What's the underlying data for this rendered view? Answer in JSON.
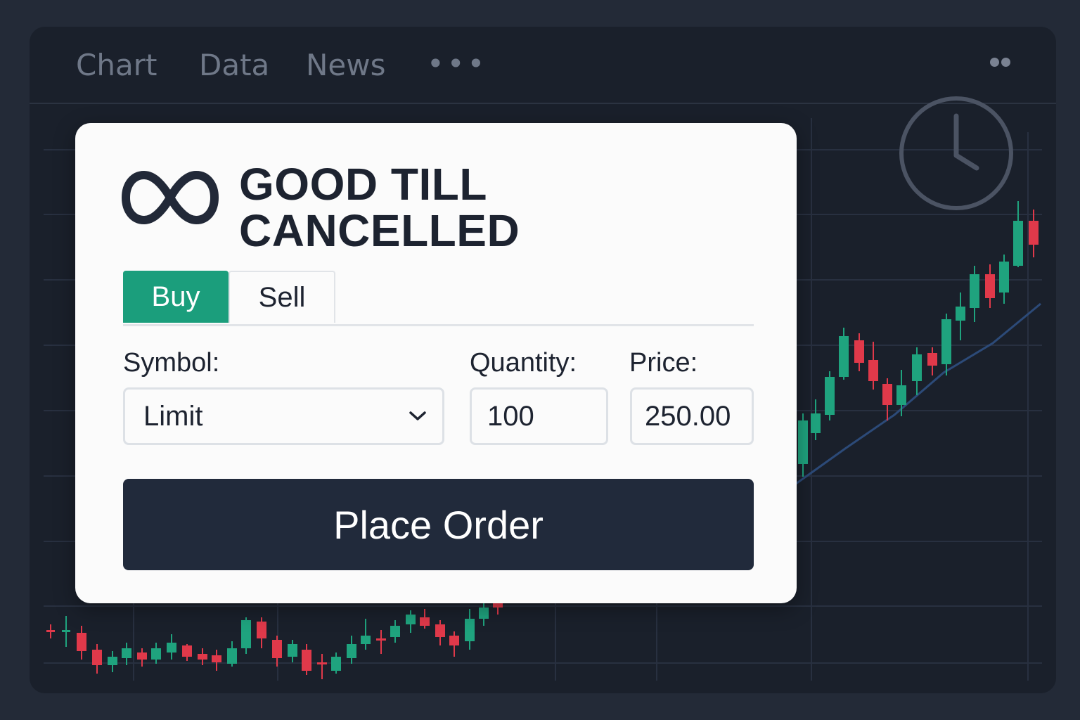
{
  "tabs": [
    {
      "label": "Chart"
    },
    {
      "label": "Data"
    },
    {
      "label": "News"
    },
    {
      "label": "•••"
    }
  ],
  "icons": {
    "window_menu": "dots-icon",
    "clock": "clock-icon",
    "logo": "infinity-icon",
    "dropdown": "chevron-down-icon"
  },
  "order_panel": {
    "title_line1": "GOOD TILL",
    "title_line2": "CANCELLED",
    "side_tabs": [
      {
        "label": "Buy",
        "active": true
      },
      {
        "label": "Sell",
        "active": false
      }
    ],
    "symbol_label": "Symbol:",
    "symbol_value": "Limit",
    "quantity_label": "Quantity:",
    "quantity_value": "100",
    "price_label": "Price:",
    "price_value": "250.00",
    "submit_label": "Place Order"
  },
  "colors": {
    "background": "#232a37",
    "window": "#1a202b",
    "panel": "#fbfbfb",
    "buy_accent": "#1b9e7c",
    "button": "#212a3b",
    "candle_up": "#1fa37e",
    "candle_down": "#e0394a",
    "moving_average": "#2c4a78"
  }
}
